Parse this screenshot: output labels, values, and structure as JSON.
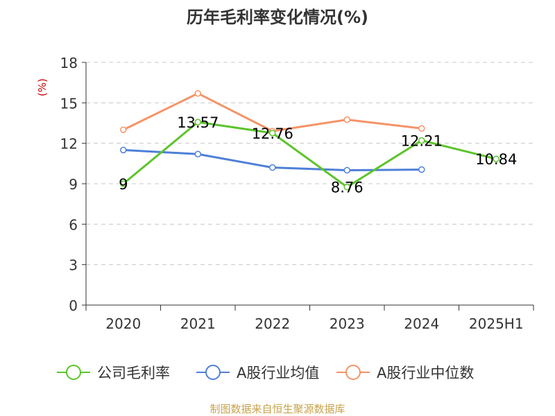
{
  "chart_data": {
    "type": "line",
    "title": "历年毛利率变化情况(%)",
    "ylabel": "(%)",
    "xlabel": "",
    "categories": [
      "2020",
      "2021",
      "2022",
      "2023",
      "2024",
      "2025H1"
    ],
    "ylim": [
      0,
      18
    ],
    "yticks": [
      0,
      3,
      6,
      9,
      12,
      15,
      18
    ],
    "grid": true,
    "legend_position": "bottom",
    "series": [
      {
        "name": "公司毛利率",
        "color": "#5cc42b",
        "values": [
          9,
          13.57,
          12.76,
          8.76,
          12.21,
          10.84
        ],
        "labels": [
          "9",
          "13.57",
          "12.76",
          "8.76",
          "12.21",
          "10.84"
        ]
      },
      {
        "name": "A股行业均值",
        "color": "#4e7fd8",
        "values": [
          11.5,
          11.2,
          10.2,
          10.0,
          10.05,
          null
        ],
        "labels": []
      },
      {
        "name": "A股行业中位数",
        "color": "#f59366",
        "values": [
          13.0,
          15.7,
          12.9,
          13.75,
          13.1,
          null
        ],
        "labels": []
      }
    ]
  },
  "source": "制图数据来自恒生聚源数据库"
}
